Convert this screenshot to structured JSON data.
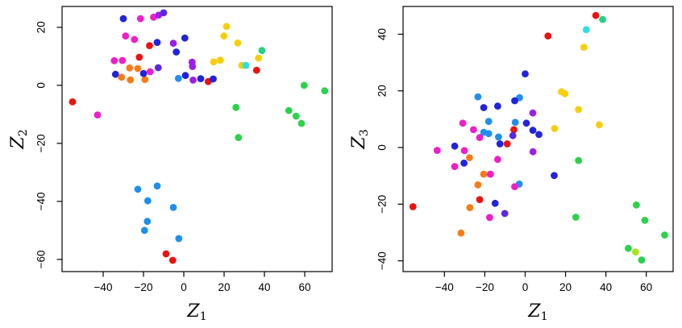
{
  "figure": {
    "background": "#ffffff",
    "axis_color": "#000000",
    "tick_label_color": "#000000"
  },
  "palette": {
    "red": "#eb1212",
    "orange": "#f57d17",
    "yellow": "#f7ce0a",
    "yellowgreen": "#a8e21c",
    "green": "#2bd24b",
    "springgreen": "#23d282",
    "cyan": "#2de1e1",
    "skyblue": "#1f8feb",
    "blue": "#2323dc",
    "violet": "#5a28e0",
    "purple": "#9c1fe8",
    "magenta": "#ee1ec8"
  },
  "chart_data": [
    {
      "type": "scatter",
      "title": "",
      "xlabel": {
        "base": "Z",
        "sub": "1"
      },
      "ylabel": {
        "base": "Z",
        "sub": "2"
      },
      "xlim": [
        -60.4,
        73.6
      ],
      "ylim": [
        -64.2,
        27.2
      ],
      "xticks": [
        -40,
        -20,
        0,
        20,
        40,
        60
      ],
      "yticks": [
        -60,
        -40,
        -20,
        0,
        20
      ],
      "grid": false,
      "legend": "none",
      "points": [
        [
          -30,
          23,
          "blue"
        ],
        [
          -21.5,
          23,
          "magenta"
        ],
        [
          -15,
          23.5,
          "magenta"
        ],
        [
          -12.5,
          24.2,
          "purple"
        ],
        [
          -10,
          25,
          "violet"
        ],
        [
          -28.9,
          17,
          "magenta"
        ],
        [
          -24.5,
          15.8,
          "magenta"
        ],
        [
          -17,
          13.7,
          "red"
        ],
        [
          -13.2,
          14.8,
          "blue"
        ],
        [
          -5.2,
          14.5,
          "purple"
        ],
        [
          0.5,
          16.3,
          "blue"
        ],
        [
          -3.7,
          11.5,
          "blue"
        ],
        [
          -22.1,
          9.7,
          "red"
        ],
        [
          -34.5,
          8.5,
          "magenta"
        ],
        [
          -30.5,
          8.6,
          "magenta"
        ],
        [
          -26.9,
          6,
          "orange"
        ],
        [
          -22.8,
          5.8,
          "orange"
        ],
        [
          -33.9,
          3.8,
          "blue"
        ],
        [
          -30.9,
          2.8,
          "orange"
        ],
        [
          -26.5,
          1.9,
          "orange"
        ],
        [
          -19.3,
          2,
          "orange"
        ],
        [
          -20,
          4.1,
          "blue"
        ],
        [
          -16.7,
          4.7,
          "magenta"
        ],
        [
          -12.7,
          6.1,
          "violet"
        ],
        [
          -2.7,
          2.4,
          "skyblue"
        ],
        [
          0.8,
          3.4,
          "blue"
        ],
        [
          4.6,
          1.8,
          "purple"
        ],
        [
          8.4,
          2.3,
          "blue"
        ],
        [
          12.1,
          1.3,
          "red"
        ],
        [
          14.6,
          2.2,
          "blue"
        ],
        [
          4.1,
          8,
          "purple"
        ],
        [
          4.3,
          6.5,
          "purple"
        ],
        [
          14.8,
          8.1,
          "yellow"
        ],
        [
          18.1,
          8.7,
          "yellow"
        ],
        [
          21.2,
          20.3,
          "yellow"
        ],
        [
          19.9,
          17,
          "yellow"
        ],
        [
          26.8,
          14.6,
          "yellow"
        ],
        [
          28.8,
          6.9,
          "yellow"
        ],
        [
          30.8,
          6.9,
          "cyan"
        ],
        [
          37.1,
          9.4,
          "yellow"
        ],
        [
          38.8,
          12,
          "springgreen"
        ],
        [
          36.1,
          5.2,
          "red"
        ],
        [
          59.7,
          0,
          "green"
        ],
        [
          69.9,
          -1.9,
          "green"
        ],
        [
          25.9,
          -7.6,
          "green"
        ],
        [
          52.1,
          -8.7,
          "green"
        ],
        [
          55.7,
          -10.6,
          "green"
        ],
        [
          58.4,
          -13.1,
          "green"
        ],
        [
          27.1,
          -18,
          "green"
        ],
        [
          -55.2,
          -5.7,
          "red"
        ],
        [
          -42.8,
          -10.2,
          "magenta"
        ],
        [
          -22.8,
          -35.8,
          "skyblue"
        ],
        [
          -13.2,
          -34.7,
          "skyblue"
        ],
        [
          -17.9,
          -39.8,
          "skyblue"
        ],
        [
          -5.2,
          -42.1,
          "skyblue"
        ],
        [
          -18.1,
          -46.9,
          "skyblue"
        ],
        [
          -19.5,
          -50,
          "skyblue"
        ],
        [
          -2.5,
          -52.8,
          "skyblue"
        ],
        [
          -8.8,
          -58.1,
          "red"
        ],
        [
          -5.5,
          -60.3,
          "red"
        ]
      ]
    },
    {
      "type": "scatter",
      "title": "",
      "xlabel": {
        "base": "Z",
        "sub": "1"
      },
      "ylabel": {
        "base": "Z",
        "sub": "3"
      },
      "xlim": [
        -60.5,
        73.3
      ],
      "ylim": [
        -43.8,
        49.8
      ],
      "xticks": [
        -40,
        -20,
        0,
        20,
        40,
        60
      ],
      "yticks": [
        -40,
        -20,
        0,
        20,
        40
      ],
      "grid": false,
      "legend": "none",
      "points": [
        [
          35,
          46.6,
          "red"
        ],
        [
          38.4,
          45.2,
          "springgreen"
        ],
        [
          30.3,
          41.6,
          "cyan"
        ],
        [
          11.3,
          39.4,
          "red"
        ],
        [
          29.1,
          35.4,
          "yellow"
        ],
        [
          0,
          26,
          "blue"
        ],
        [
          -23.4,
          17.9,
          "skyblue"
        ],
        [
          18,
          19.7,
          "yellow"
        ],
        [
          19.7,
          19,
          "yellow"
        ],
        [
          -2.8,
          17.6,
          "skyblue"
        ],
        [
          -5.2,
          16.5,
          "blue"
        ],
        [
          -20.5,
          14.1,
          "blue"
        ],
        [
          -13.6,
          14.6,
          "blue"
        ],
        [
          3.8,
          12.2,
          "purple"
        ],
        [
          26.4,
          13.4,
          "yellow"
        ],
        [
          -30.9,
          8.6,
          "magenta"
        ],
        [
          -18.1,
          9.2,
          "skyblue"
        ],
        [
          -4.9,
          8.9,
          "skyblue"
        ],
        [
          0.6,
          8.6,
          "blue"
        ],
        [
          -25.6,
          6.3,
          "magenta"
        ],
        [
          -5.6,
          6.3,
          "red"
        ],
        [
          3.8,
          6.1,
          "blue"
        ],
        [
          14.6,
          6.7,
          "yellow"
        ],
        [
          36.7,
          8,
          "yellow"
        ],
        [
          -20.5,
          5.4,
          "skyblue"
        ],
        [
          -18.1,
          4.9,
          "skyblue"
        ],
        [
          -22.5,
          3.5,
          "magenta"
        ],
        [
          -13.2,
          3.7,
          "skyblue"
        ],
        [
          -6.1,
          4.2,
          "violet"
        ],
        [
          6.8,
          4.6,
          "blue"
        ],
        [
          -12.5,
          1.3,
          "blue"
        ],
        [
          -8.9,
          1.3,
          "red"
        ],
        [
          -34.9,
          0.5,
          "blue"
        ],
        [
          -43.6,
          -1,
          "magenta"
        ],
        [
          -30.1,
          -1.1,
          "magenta"
        ],
        [
          3.9,
          -1.5,
          "purple"
        ],
        [
          -27.6,
          -3.6,
          "orange"
        ],
        [
          -13.6,
          -4.2,
          "magenta"
        ],
        [
          -30.3,
          -5.5,
          "blue"
        ],
        [
          -34.9,
          -6.7,
          "magenta"
        ],
        [
          26.4,
          -4.6,
          "green"
        ],
        [
          14.4,
          -9.9,
          "blue"
        ],
        [
          -20.5,
          -9.4,
          "orange"
        ],
        [
          -17.2,
          -9.4,
          "magenta"
        ],
        [
          -23.4,
          -13.2,
          "orange"
        ],
        [
          -2.9,
          -12.9,
          "skyblue"
        ],
        [
          -5.2,
          -13.8,
          "magenta"
        ],
        [
          -22.5,
          -18.4,
          "red"
        ],
        [
          -14.9,
          -19.7,
          "blue"
        ],
        [
          -55.6,
          -20.9,
          "red"
        ],
        [
          -27.4,
          -21.2,
          "orange"
        ],
        [
          -17.6,
          -24.7,
          "magenta"
        ],
        [
          -10.1,
          -23.3,
          "violet"
        ],
        [
          25.1,
          -24.6,
          "green"
        ],
        [
          55.1,
          -20.3,
          "green"
        ],
        [
          59.3,
          -25.7,
          "green"
        ],
        [
          -31.8,
          -30.2,
          "orange"
        ],
        [
          69.1,
          -30.9,
          "green"
        ],
        [
          51.1,
          -35.6,
          "green"
        ],
        [
          54.7,
          -36.9,
          "yellowgreen"
        ],
        [
          57.7,
          -39.7,
          "green"
        ]
      ]
    }
  ]
}
